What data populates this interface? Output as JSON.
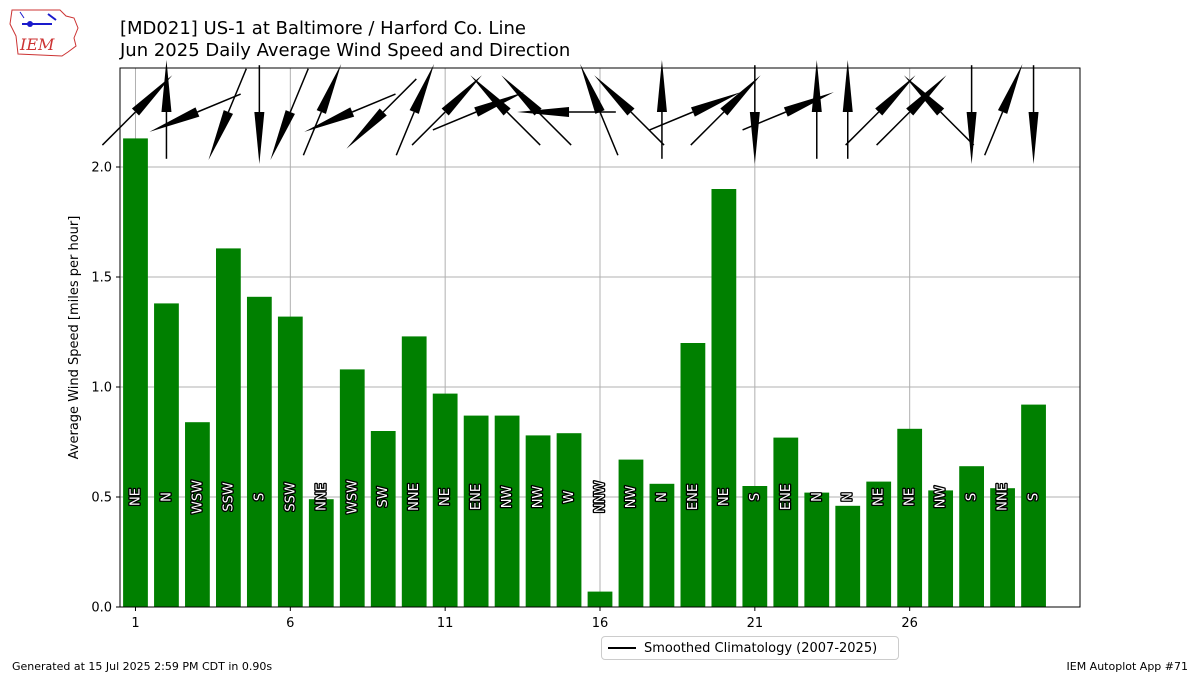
{
  "header": {
    "title_line1": "[MD021] US-1 at Baltimore / Harford Co. Line",
    "title_line2": "Jun 2025 Daily Average Wind Speed and Direction"
  },
  "logo_text": "IEM",
  "footer": {
    "left": "Generated at 15 Jul 2025 2:59 PM CDT in 0.90s",
    "right": "IEM Autoplot App #71"
  },
  "legend": {
    "label": "Smoothed Climatology (2007-2025)"
  },
  "colors": {
    "bar": "#008000",
    "barb": "#000000",
    "grid": "#b0b0b0"
  },
  "chart_data": {
    "type": "bar",
    "title": "[MD021] US-1 at Baltimore / Harford Co. Line\nJun 2025 Daily Average Wind Speed and Direction",
    "xlabel": "",
    "ylabel": "Average Wind Speed [miles per hour]",
    "ylim": [
      0,
      2.45
    ],
    "xlim": [
      0.5,
      31.5
    ],
    "xticks": [
      1,
      6,
      11,
      16,
      21,
      26
    ],
    "yticks": [
      0.0,
      0.5,
      1.0,
      1.5,
      2.0
    ],
    "ytick_labels": [
      "0.0",
      "0.5",
      "1.0",
      "1.5",
      "2.0"
    ],
    "grid": true,
    "days": [
      1,
      2,
      3,
      4,
      5,
      6,
      7,
      8,
      9,
      10,
      11,
      12,
      13,
      14,
      15,
      16,
      17,
      18,
      19,
      20,
      21,
      22,
      23,
      24,
      25,
      26,
      27,
      28,
      29,
      30
    ],
    "values": [
      2.13,
      1.38,
      0.84,
      1.63,
      1.41,
      1.32,
      0.49,
      1.08,
      0.8,
      1.23,
      0.97,
      0.87,
      0.87,
      0.78,
      0.79,
      0.07,
      0.67,
      0.56,
      1.2,
      1.9,
      0.55,
      0.77,
      0.52,
      0.46,
      0.57,
      0.81,
      0.53,
      0.64,
      0.54,
      0.92
    ],
    "directions": [
      "NE",
      "N",
      "WSW",
      "SSW",
      "S",
      "SSW",
      "NNE",
      "WSW",
      "SW",
      "NNE",
      "NE",
      "ENE",
      "NW",
      "NW",
      "W",
      "NNW",
      "NW",
      "N",
      "ENE",
      "NE",
      "S",
      "ENE",
      "N",
      "N",
      "NE",
      "NE",
      "NW",
      "S",
      "NNE",
      "S"
    ],
    "legend": [
      "Smoothed Climatology (2007-2025)"
    ],
    "legend_position": "below-center"
  }
}
